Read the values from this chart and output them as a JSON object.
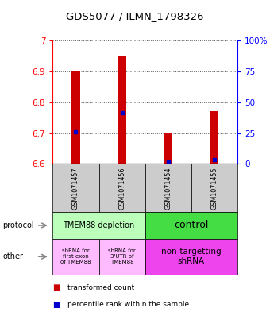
{
  "title": "GDS5077 / ILMN_1798326",
  "samples": [
    "GSM1071457",
    "GSM1071456",
    "GSM1071454",
    "GSM1071455"
  ],
  "bar_bottoms": [
    6.6,
    6.6,
    6.6,
    6.6
  ],
  "bar_tops": [
    6.9,
    6.95,
    6.7,
    6.77
  ],
  "percentile_values": [
    6.705,
    6.765,
    6.605,
    6.615
  ],
  "ylim_left": [
    6.6,
    7.0
  ],
  "ylim_right": [
    0,
    100
  ],
  "yticks_left": [
    6.6,
    6.7,
    6.8,
    6.9,
    7.0
  ],
  "yticks_right": [
    0,
    25,
    50,
    75,
    100
  ],
  "ytick_labels_left": [
    "6.6",
    "6.7",
    "6.8",
    "6.9",
    "7"
  ],
  "ytick_labels_right": [
    "0",
    "25",
    "50",
    "75",
    "100%"
  ],
  "bar_color": "#cc0000",
  "percentile_color": "#0000cc",
  "grid_color": "#555555",
  "protocol_labels": [
    "TMEM88 depletion",
    "control"
  ],
  "protocol_colors": [
    "#bbffbb",
    "#44dd44"
  ],
  "other_labels_left1": "shRNA for\nfirst exon\nof TMEM88",
  "other_labels_left2": "shRNA for\n3'UTR of\nTMEM88",
  "other_label_right": "non-targetting\nshRNA",
  "other_color_left": "#ffbbff",
  "other_color_right": "#ee44ee",
  "legend_red": "transformed count",
  "legend_blue": "percentile rank within the sample",
  "bg_color": "#ffffff",
  "sample_box_color": "#cccccc",
  "bar_width": 0.18
}
